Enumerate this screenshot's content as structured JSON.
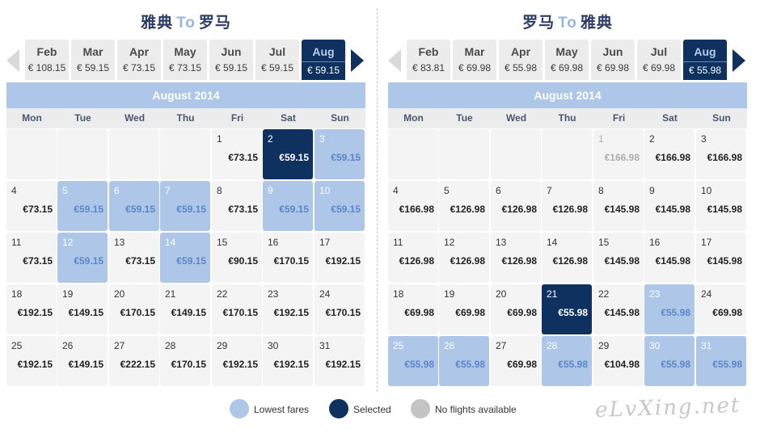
{
  "legend": {
    "lowest": "Lowest fares",
    "selected": "Selected",
    "none": "No flights available",
    "colors": {
      "lowest": "#aec6e8",
      "selected": "#0f3160",
      "none": "#c4c4c4"
    }
  },
  "watermark": "eLvXing.net",
  "weekdays": [
    "Mon",
    "Tue",
    "Wed",
    "Thu",
    "Fri",
    "Sat",
    "Sun"
  ],
  "panels": [
    {
      "route": {
        "from": "雅典",
        "to_word": "To",
        "to": "罗马"
      },
      "months": [
        {
          "name": "Feb",
          "price": "€ 108.15"
        },
        {
          "name": "Mar",
          "price": "€ 59.15"
        },
        {
          "name": "Apr",
          "price": "€ 73.15"
        },
        {
          "name": "May",
          "price": "€ 73.15"
        },
        {
          "name": "Jun",
          "price": "€ 59.15"
        },
        {
          "name": "Jul",
          "price": "€ 59.15"
        },
        {
          "name": "Aug",
          "price": "€ 59.15",
          "active": true
        }
      ],
      "month_title": "August 2014",
      "days": [
        {
          "day": "1",
          "price": "€73.15"
        },
        {
          "day": "2",
          "price": "€59.15",
          "state": "selected"
        },
        {
          "day": "3",
          "price": "€59.15",
          "state": "lowest"
        },
        {
          "day": "4",
          "price": "€73.15"
        },
        {
          "day": "5",
          "price": "€59.15",
          "state": "lowest"
        },
        {
          "day": "6",
          "price": "€59.15",
          "state": "lowest"
        },
        {
          "day": "7",
          "price": "€59.15",
          "state": "lowest"
        },
        {
          "day": "8",
          "price": "€73.15"
        },
        {
          "day": "9",
          "price": "€59.15",
          "state": "lowest"
        },
        {
          "day": "10",
          "price": "€59.15",
          "state": "lowest"
        },
        {
          "day": "11",
          "price": "€73.15"
        },
        {
          "day": "12",
          "price": "€59.15",
          "state": "lowest"
        },
        {
          "day": "13",
          "price": "€73.15"
        },
        {
          "day": "14",
          "price": "€59.15",
          "state": "lowest"
        },
        {
          "day": "15",
          "price": "€90.15"
        },
        {
          "day": "16",
          "price": "€170.15"
        },
        {
          "day": "17",
          "price": "€192.15"
        },
        {
          "day": "18",
          "price": "€192.15"
        },
        {
          "day": "19",
          "price": "€149.15"
        },
        {
          "day": "20",
          "price": "€170.15"
        },
        {
          "day": "21",
          "price": "€149.15"
        },
        {
          "day": "22",
          "price": "€170.15"
        },
        {
          "day": "23",
          "price": "€192.15"
        },
        {
          "day": "24",
          "price": "€170.15"
        },
        {
          "day": "25",
          "price": "€192.15"
        },
        {
          "day": "26",
          "price": "€149.15"
        },
        {
          "day": "27",
          "price": "€222.15"
        },
        {
          "day": "28",
          "price": "€170.15"
        },
        {
          "day": "29",
          "price": "€192.15"
        },
        {
          "day": "30",
          "price": "€192.15"
        },
        {
          "day": "31",
          "price": "€192.15"
        }
      ]
    },
    {
      "route": {
        "from": "罗马",
        "to_word": "To",
        "to": "雅典"
      },
      "months": [
        {
          "name": "Feb",
          "price": "€ 83.81"
        },
        {
          "name": "Mar",
          "price": "€ 69.98"
        },
        {
          "name": "Apr",
          "price": "€ 55.98"
        },
        {
          "name": "May",
          "price": "€ 69.98"
        },
        {
          "name": "Jun",
          "price": "€ 69.98"
        },
        {
          "name": "Jul",
          "price": "€ 69.98"
        },
        {
          "name": "Aug",
          "price": "€ 55.98",
          "active": true
        }
      ],
      "month_title": "August 2014",
      "days": [
        {
          "day": "1",
          "price": "€166.98",
          "state": "past"
        },
        {
          "day": "2",
          "price": "€166.98"
        },
        {
          "day": "3",
          "price": "€166.98"
        },
        {
          "day": "4",
          "price": "€166.98"
        },
        {
          "day": "5",
          "price": "€126.98"
        },
        {
          "day": "6",
          "price": "€126.98"
        },
        {
          "day": "7",
          "price": "€126.98"
        },
        {
          "day": "8",
          "price": "€145.98"
        },
        {
          "day": "9",
          "price": "€145.98"
        },
        {
          "day": "10",
          "price": "€145.98"
        },
        {
          "day": "11",
          "price": "€126.98"
        },
        {
          "day": "12",
          "price": "€126.98"
        },
        {
          "day": "13",
          "price": "€126.98"
        },
        {
          "day": "14",
          "price": "€126.98"
        },
        {
          "day": "15",
          "price": "€145.98"
        },
        {
          "day": "16",
          "price": "€145.98"
        },
        {
          "day": "17",
          "price": "€145.98"
        },
        {
          "day": "18",
          "price": "€69.98"
        },
        {
          "day": "19",
          "price": "€69.98"
        },
        {
          "day": "20",
          "price": "€69.98"
        },
        {
          "day": "21",
          "price": "€55.98",
          "state": "selected"
        },
        {
          "day": "22",
          "price": "€145.98"
        },
        {
          "day": "23",
          "price": "€55.98",
          "state": "lowest"
        },
        {
          "day": "24",
          "price": "€69.98"
        },
        {
          "day": "25",
          "price": "€55.98",
          "state": "lowest"
        },
        {
          "day": "26",
          "price": "€55.98",
          "state": "lowest"
        },
        {
          "day": "27",
          "price": "€69.98"
        },
        {
          "day": "28",
          "price": "€55.98",
          "state": "lowest"
        },
        {
          "day": "29",
          "price": "€104.98"
        },
        {
          "day": "30",
          "price": "€55.98",
          "state": "lowest"
        },
        {
          "day": "31",
          "price": "€55.98",
          "state": "lowest"
        }
      ]
    }
  ]
}
